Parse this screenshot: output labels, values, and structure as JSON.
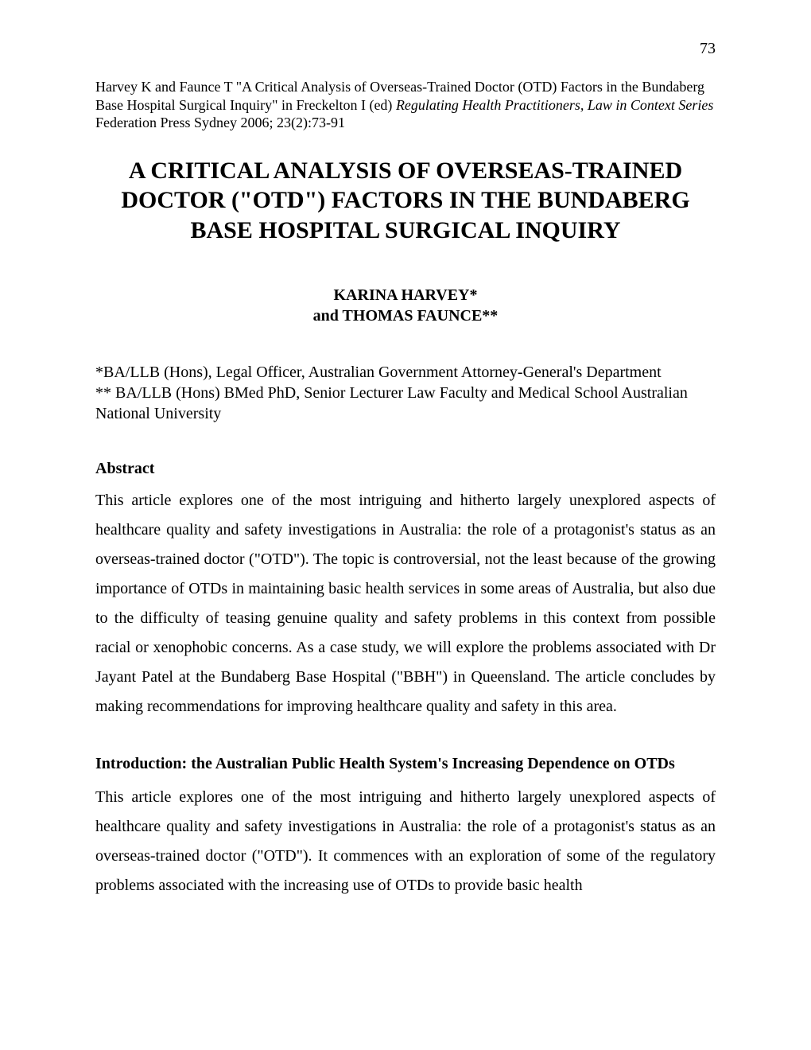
{
  "page_number": "73",
  "citation": {
    "prefix": "Harvey K and Faunce T \"A Critical Analysis of Overseas-Trained Doctor    (OTD) Factors in the Bundaberg Base Hospital Surgical Inquiry\" in Freckelton I (ed) ",
    "italic": "Regulating Health Practitioners, Law in Context Series",
    "suffix": " Federation Press Sydney  2006; 23(2):73-91"
  },
  "title": "A CRITICAL ANALYSIS OF OVERSEAS-TRAINED DOCTOR (\"OTD\") FACTORS IN THE BUNDABERG BASE HOSPITAL SURGICAL INQUIRY",
  "authors": {
    "line1": "KARINA HARVEY*",
    "line2": "and THOMAS FAUNCE**"
  },
  "affiliations": {
    "line1": "*BA/LLB (Hons), Legal Officer, Australian Government Attorney-General's Department",
    "line2": "** BA/LLB (Hons) BMed PhD, Senior Lecturer Law Faculty and Medical School Australian National University"
  },
  "abstract": {
    "heading": "Abstract",
    "body": "This article explores one of the most intriguing and hitherto largely unexplored aspects of healthcare quality and safety investigations in Australia: the role of a protagonist's status as an overseas-trained doctor (\"OTD\"). The topic is controversial, not the least because of the growing importance of OTDs in maintaining basic health services in some areas of Australia, but also due to the difficulty of teasing genuine quality and safety problems in this context from possible racial or xenophobic concerns. As a case study, we will explore the problems associated with Dr Jayant Patel at the Bundaberg Base Hospital (\"BBH\") in Queensland. The article concludes by making recommendations for improving healthcare quality and safety in this area."
  },
  "introduction": {
    "heading": "Introduction: the Australian Public Health System's Increasing Dependence on OTDs",
    "body": "This article explores one of the most intriguing and hitherto largely unexplored aspects of healthcare quality and safety investigations in Australia: the role of a protagonist's status as an overseas-trained doctor (\"OTD\"). It commences with an exploration of some of the regulatory problems associated with the increasing use of OTDs to provide basic health"
  },
  "colors": {
    "background": "#ffffff",
    "text": "#000000"
  },
  "typography": {
    "body_font": "Times New Roman",
    "citation_font": "Georgia",
    "title_fontsize": 30,
    "body_fontsize": 20,
    "citation_fontsize": 18,
    "line_height_body": 1.85
  }
}
